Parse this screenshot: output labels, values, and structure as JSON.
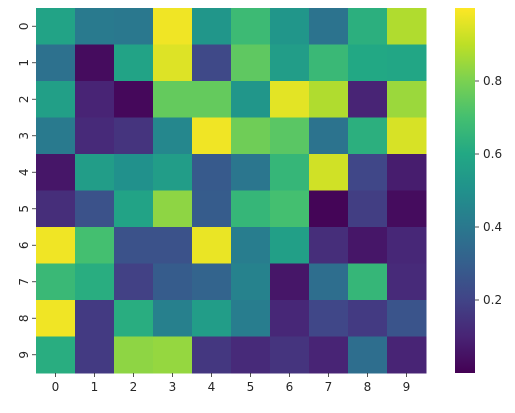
{
  "chart_data": {
    "type": "heatmap",
    "title": "",
    "xlabel": "",
    "ylabel": "",
    "x_ticks": [
      "0",
      "1",
      "2",
      "3",
      "4",
      "5",
      "6",
      "7",
      "8",
      "9"
    ],
    "y_ticks": [
      "0",
      "1",
      "2",
      "3",
      "4",
      "5",
      "6",
      "7",
      "8",
      "9"
    ],
    "colormap": "viridis",
    "vmin": 0.0,
    "vmax": 1.0,
    "colorbar_ticks": [
      "0.2",
      "0.4",
      "0.6",
      "0.8"
    ],
    "colorbar_tick_values": [
      0.2,
      0.4,
      0.6,
      0.8
    ],
    "matrix": [
      [
        0.58,
        0.41,
        0.4,
        0.98,
        0.52,
        0.68,
        0.52,
        0.38,
        0.63,
        0.88
      ],
      [
        0.37,
        0.03,
        0.58,
        0.95,
        0.22,
        0.75,
        0.55,
        0.67,
        0.6,
        0.59
      ],
      [
        0.56,
        0.1,
        0.02,
        0.76,
        0.76,
        0.52,
        0.96,
        0.88,
        0.1,
        0.85
      ],
      [
        0.41,
        0.12,
        0.15,
        0.46,
        0.98,
        0.78,
        0.74,
        0.38,
        0.63,
        0.94
      ],
      [
        0.06,
        0.55,
        0.5,
        0.55,
        0.28,
        0.39,
        0.66,
        0.93,
        0.21,
        0.08
      ],
      [
        0.13,
        0.25,
        0.58,
        0.83,
        0.29,
        0.66,
        0.7,
        0.01,
        0.18,
        0.03
      ],
      [
        0.98,
        0.7,
        0.25,
        0.25,
        0.97,
        0.42,
        0.56,
        0.13,
        0.06,
        0.11
      ],
      [
        0.67,
        0.62,
        0.19,
        0.29,
        0.32,
        0.44,
        0.06,
        0.36,
        0.66,
        0.12
      ],
      [
        0.98,
        0.17,
        0.62,
        0.43,
        0.55,
        0.42,
        0.11,
        0.21,
        0.17,
        0.26
      ],
      [
        0.62,
        0.17,
        0.83,
        0.84,
        0.16,
        0.12,
        0.15,
        0.1,
        0.36,
        0.1
      ]
    ]
  }
}
